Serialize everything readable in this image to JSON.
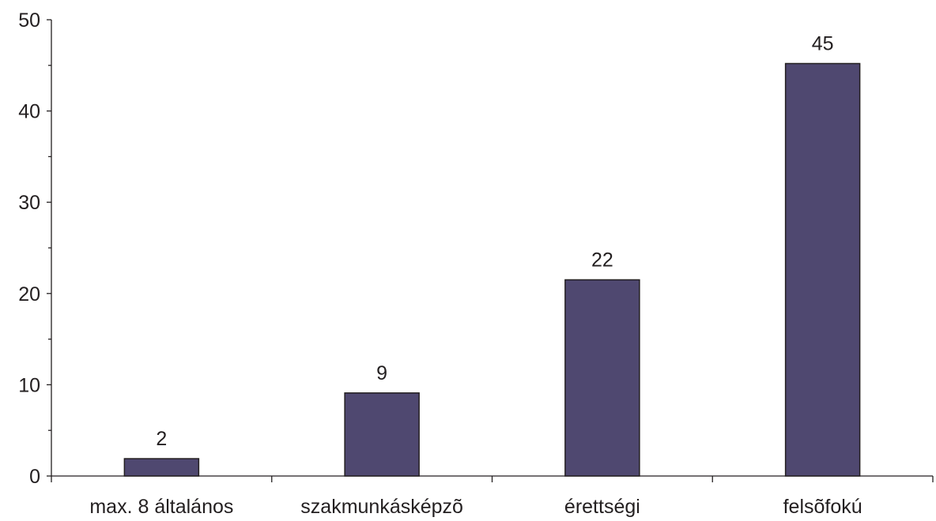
{
  "chart_data": {
    "type": "bar",
    "categories": [
      "max. 8 általános",
      "szakmunkásképzõ",
      "érettségi",
      "felsõfokú"
    ],
    "values": [
      1.9,
      9.1,
      21.5,
      45.2
    ],
    "data_labels": [
      "2",
      "9",
      "22",
      "45"
    ],
    "ylim": [
      0,
      50
    ],
    "y_ticks": [
      0,
      10,
      20,
      30,
      40,
      50
    ],
    "y_tick_labels": [
      "0",
      "10",
      "20",
      "30",
      "40",
      "50"
    ],
    "y_minor_ticks": [
      5,
      15,
      25,
      35,
      45
    ],
    "grid": false,
    "legend": "none",
    "bar_color": "#4f4870",
    "axis_color": "#231f20"
  }
}
